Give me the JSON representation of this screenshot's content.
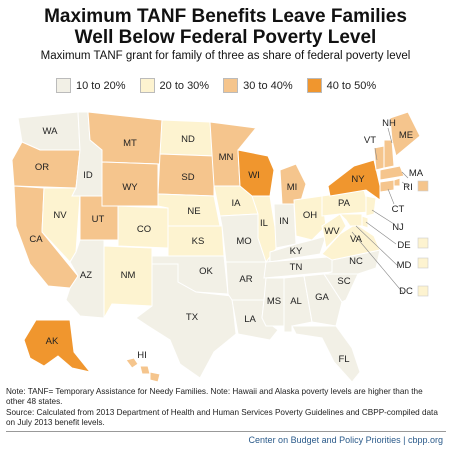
{
  "title_line1": "Maximum TANF Benefits Leave Families",
  "title_line2": "Well Below Federal Poverty Level",
  "subtitle": "Maximum TANF grant for family of three as share of federal poverty level",
  "legend": [
    {
      "label": "10 to 20%",
      "color": "#f2f0e6"
    },
    {
      "label": "20 to 30%",
      "color": "#fdf3d0"
    },
    {
      "label": "30 to 40%",
      "color": "#f5c58d"
    },
    {
      "label": "40 to 50%",
      "color": "#f0962e"
    }
  ],
  "state_labels": {
    "WA": "WA",
    "OR": "OR",
    "CA": "CA",
    "ID": "ID",
    "NV": "NV",
    "AZ": "AZ",
    "MT": "MT",
    "WY": "WY",
    "UT": "UT",
    "CO": "CO",
    "NM": "NM",
    "ND": "ND",
    "SD": "SD",
    "NE": "NE",
    "KS": "KS",
    "OK": "OK",
    "TX": "TX",
    "MN": "MN",
    "IA": "IA",
    "MO": "MO",
    "AR": "AR",
    "LA": "LA",
    "WI": "WI",
    "IL": "IL",
    "MI": "MI",
    "IN": "IN",
    "OH": "OH",
    "KY": "KY",
    "TN": "TN",
    "MS": "MS",
    "AL": "AL",
    "GA": "GA",
    "FL": "FL",
    "SC": "SC",
    "NC": "NC",
    "VA": "VA",
    "WV": "WV",
    "PA": "PA",
    "NY": "NY",
    "VT": "VT",
    "NH": "NH",
    "ME": "ME",
    "MA": "MA",
    "RI": "RI",
    "CT": "CT",
    "NJ": "NJ",
    "DE": "DE",
    "MD": "MD",
    "DC": "DC",
    "AK": "AK",
    "HI": "HI"
  },
  "state_bins": {
    "WA": "10 to 20%",
    "ID": "10 to 20%",
    "NV": "20 to 30%",
    "AZ": "10 to 20%",
    "CO": "20 to 30%",
    "NM": "20 to 30%",
    "NE": "20 to 30%",
    "KS": "20 to 30%",
    "OK": "10 to 20%",
    "TX": "10 to 20%",
    "IA": "20 to 30%",
    "MO": "10 to 20%",
    "AR": "10 to 20%",
    "LA": "10 to 20%",
    "IL": "20 to 30%",
    "IN": "10 to 20%",
    "OH": "20 to 30%",
    "KY": "10 to 20%",
    "TN": "10 to 20%",
    "MS": "10 to 20%",
    "AL": "10 to 20%",
    "GA": "10 to 20%",
    "FL": "10 to 20%",
    "SC": "10 to 20%",
    "NC": "10 to 20%",
    "VA": "20 to 30%",
    "WV": "20 to 30%",
    "PA": "20 to 30%",
    "ND": "20 to 30%",
    "DE": "20 to 30%",
    "MD": "20 to 30%",
    "DC": "20 to 30%",
    "NJ": "20 to 30%",
    "OR": "30 to 40%",
    "CA": "30 to 40%",
    "MT": "30 to 40%",
    "WY": "30 to 40%",
    "UT": "30 to 40%",
    "SD": "30 to 40%",
    "MN": "30 to 40%",
    "MI": "30 to 40%",
    "ME": "30 to 40%",
    "VT": "30 to 40%",
    "NH": "30 to 40%",
    "MA": "30 to 40%",
    "RI": "30 to 40%",
    "CT": "30 to 40%",
    "HI": "30 to 40%",
    "WI": "40 to 50%",
    "NY": "40 to 50%",
    "AK": "40 to 50%"
  },
  "note1": "Note: TANF= Temporary Assistance for Needy Families. Note: Hawaii and Alaska poverty levels are higher than the other 48 states.",
  "note2": "Source: Calculated from 2013 Department of Health and Human Services Poverty Guidelines and CBPP-compiled data on July 2013 benefit levels.",
  "footer": "Center on Budget and Policy Priorities | cbpp.org"
}
